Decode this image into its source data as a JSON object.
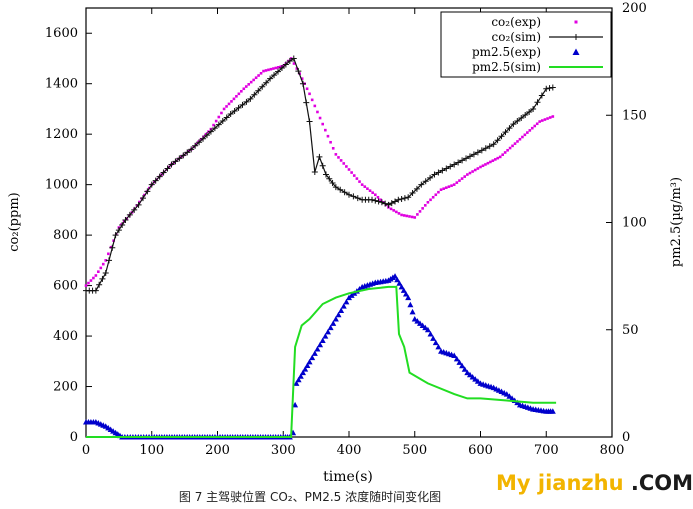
{
  "chart_data": {
    "type": "line",
    "xlabel": "time(s)",
    "ylabel_left": "co₂(ppm)",
    "ylabel_right": "pm2.5(µg/m³)",
    "xlim": [
      0,
      800
    ],
    "ylim_left": [
      0,
      1700
    ],
    "ylim_right": [
      0,
      200
    ],
    "x_ticks": [
      0,
      100,
      200,
      300,
      400,
      500,
      600,
      700,
      800
    ],
    "y_left_ticks": [
      0,
      200,
      400,
      600,
      800,
      1000,
      1200,
      1400,
      1600
    ],
    "y_right_ticks": [
      0,
      50,
      100,
      150,
      200
    ],
    "grid": false,
    "legend_position": "top-right",
    "series": [
      {
        "name": "co₂(exp)",
        "axis": "left",
        "style": "dots",
        "color": "#e000e0",
        "points": [
          [
            0,
            600
          ],
          [
            15,
            640
          ],
          [
            30,
            700
          ],
          [
            50,
            830
          ],
          [
            70,
            890
          ],
          [
            100,
            1000
          ],
          [
            130,
            1080
          ],
          [
            160,
            1140
          ],
          [
            190,
            1220
          ],
          [
            210,
            1300
          ],
          [
            240,
            1380
          ],
          [
            270,
            1450
          ],
          [
            300,
            1470
          ],
          [
            312,
            1500
          ],
          [
            325,
            1440
          ],
          [
            340,
            1360
          ],
          [
            360,
            1240
          ],
          [
            380,
            1120
          ],
          [
            400,
            1060
          ],
          [
            420,
            1000
          ],
          [
            440,
            960
          ],
          [
            460,
            910
          ],
          [
            480,
            880
          ],
          [
            500,
            870
          ],
          [
            520,
            930
          ],
          [
            540,
            980
          ],
          [
            560,
            1000
          ],
          [
            580,
            1040
          ],
          [
            600,
            1070
          ],
          [
            630,
            1110
          ],
          [
            660,
            1180
          ],
          [
            690,
            1250
          ],
          [
            710,
            1270
          ]
        ]
      },
      {
        "name": "co₂(sim)",
        "axis": "left",
        "style": "line-plus",
        "color": "#111111",
        "points": [
          [
            0,
            580
          ],
          [
            15,
            580
          ],
          [
            30,
            650
          ],
          [
            45,
            800
          ],
          [
            60,
            860
          ],
          [
            80,
            920
          ],
          [
            100,
            1000
          ],
          [
            130,
            1080
          ],
          [
            160,
            1140
          ],
          [
            190,
            1210
          ],
          [
            220,
            1280
          ],
          [
            250,
            1340
          ],
          [
            280,
            1420
          ],
          [
            310,
            1490
          ],
          [
            316,
            1500
          ],
          [
            330,
            1400
          ],
          [
            340,
            1250
          ],
          [
            348,
            1050
          ],
          [
            355,
            1110
          ],
          [
            365,
            1040
          ],
          [
            380,
            990
          ],
          [
            400,
            960
          ],
          [
            420,
            940
          ],
          [
            435,
            940
          ],
          [
            450,
            930
          ],
          [
            460,
            920
          ],
          [
            475,
            940
          ],
          [
            490,
            950
          ],
          [
            510,
            1000
          ],
          [
            530,
            1040
          ],
          [
            560,
            1080
          ],
          [
            590,
            1120
          ],
          [
            620,
            1160
          ],
          [
            650,
            1240
          ],
          [
            680,
            1300
          ],
          [
            700,
            1380
          ],
          [
            710,
            1385
          ]
        ]
      },
      {
        "name": "pm2.5(exp)",
        "axis": "right",
        "style": "triangles",
        "color": "#0000cc",
        "points": [
          [
            0,
            7
          ],
          [
            15,
            7
          ],
          [
            30,
            5
          ],
          [
            45,
            2
          ],
          [
            55,
            0
          ],
          [
            100,
            0
          ],
          [
            150,
            0
          ],
          [
            200,
            0
          ],
          [
            250,
            0
          ],
          [
            300,
            0
          ],
          [
            310,
            0
          ],
          [
            315,
            2
          ],
          [
            318,
            15
          ],
          [
            320,
            25
          ],
          [
            330,
            30
          ],
          [
            340,
            35
          ],
          [
            360,
            45
          ],
          [
            380,
            55
          ],
          [
            400,
            65
          ],
          [
            420,
            70
          ],
          [
            440,
            72
          ],
          [
            460,
            73
          ],
          [
            470,
            75
          ],
          [
            480,
            70
          ],
          [
            490,
            65
          ],
          [
            500,
            55
          ],
          [
            520,
            50
          ],
          [
            540,
            40
          ],
          [
            560,
            38
          ],
          [
            580,
            30
          ],
          [
            600,
            25
          ],
          [
            620,
            23
          ],
          [
            640,
            20
          ],
          [
            660,
            15
          ],
          [
            680,
            13
          ],
          [
            700,
            12
          ],
          [
            710,
            12
          ]
        ]
      },
      {
        "name": "pm2.5(sim)",
        "axis": "right",
        "style": "line",
        "color": "#22dd22",
        "points": [
          [
            0,
            0
          ],
          [
            312,
            0
          ],
          [
            318,
            42
          ],
          [
            328,
            52
          ],
          [
            340,
            55
          ],
          [
            360,
            62
          ],
          [
            380,
            65
          ],
          [
            400,
            67
          ],
          [
            430,
            69
          ],
          [
            460,
            70
          ],
          [
            472,
            70
          ],
          [
            476,
            48
          ],
          [
            480,
            45
          ],
          [
            484,
            42
          ],
          [
            492,
            30
          ],
          [
            520,
            25
          ],
          [
            560,
            20
          ],
          [
            580,
            18
          ],
          [
            600,
            18
          ],
          [
            640,
            17
          ],
          [
            680,
            16
          ],
          [
            715,
            16
          ]
        ]
      }
    ]
  },
  "caption": "图 7 主驾驶位置 CO₂、PM2.5 浓度随时间变化图",
  "watermark": {
    "part1": "My jianzhu ",
    "part2": ".COM"
  }
}
